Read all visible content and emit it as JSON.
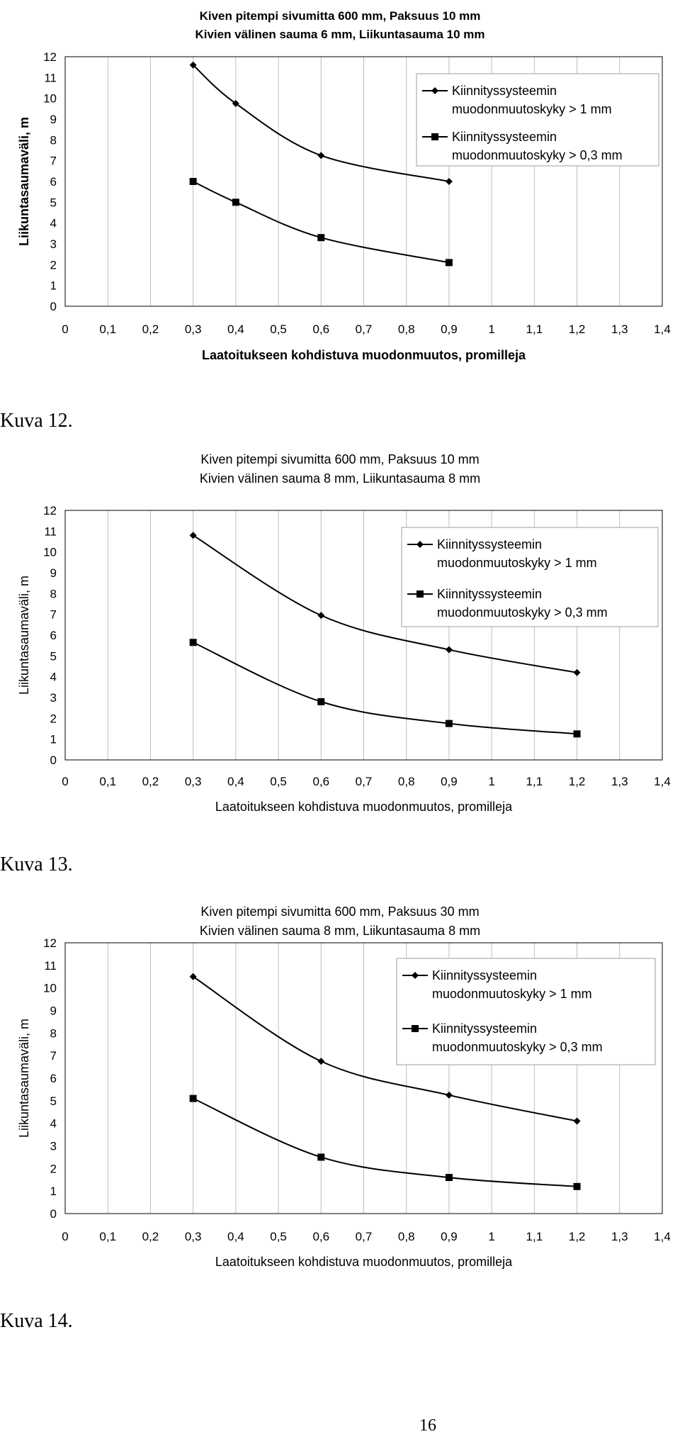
{
  "chart_data": [
    {
      "type": "line",
      "title": [
        "Kiven pitempi sivumitta 600 mm, Paksuus 10 mm",
        "Kivien välinen sauma 6 mm, Liikuntasauma 10 mm"
      ],
      "xlabel": "Laatoitukseen kohdistuva muodonmuutos, promilleja",
      "ylabel": "Liikuntasaumaväli, m",
      "xlim": [
        0,
        1.4
      ],
      "ylim": [
        0,
        12
      ],
      "xticks": [
        "0",
        "0,1",
        "0,2",
        "0,3",
        "0,4",
        "0,5",
        "0,6",
        "0,7",
        "0,8",
        "0,9",
        "1",
        "1,1",
        "1,2",
        "1,3",
        "1,4"
      ],
      "yticks": [
        "0",
        "1",
        "2",
        "3",
        "4",
        "5",
        "6",
        "7",
        "8",
        "9",
        "10",
        "11",
        "12"
      ],
      "grid": "vertical",
      "legend_position": "top-right",
      "series": [
        {
          "name": [
            "Kiinnityssysteemin",
            "muodonmuutoskyky > 1 mm"
          ],
          "marker": "diamond",
          "x": [
            0.3,
            0.4,
            0.6,
            0.9
          ],
          "y": [
            11.6,
            9.75,
            7.25,
            6.0
          ]
        },
        {
          "name": [
            "Kiinnityssysteemin",
            "muodonmuutoskyky > 0,3 mm"
          ],
          "marker": "square",
          "x": [
            0.3,
            0.4,
            0.6,
            0.9
          ],
          "y": [
            6.0,
            5.0,
            3.3,
            2.1
          ]
        }
      ]
    },
    {
      "type": "line",
      "title": [
        "Kiven pitempi sivumitta 600 mm, Paksuus 10 mm",
        "Kivien välinen sauma 8 mm, Liikuntasauma 8 mm"
      ],
      "xlabel": "Laatoitukseen kohdistuva muodonmuutos, promilleja",
      "ylabel": "Liikuntasaumaväli, m",
      "xlim": [
        0,
        1.4
      ],
      "ylim": [
        0,
        12
      ],
      "xticks": [
        "0",
        "0,1",
        "0,2",
        "0,3",
        "0,4",
        "0,5",
        "0,6",
        "0,7",
        "0,8",
        "0,9",
        "1",
        "1,1",
        "1,2",
        "1,3",
        "1,4"
      ],
      "yticks": [
        "0",
        "1",
        "2",
        "3",
        "4",
        "5",
        "6",
        "7",
        "8",
        "9",
        "10",
        "11",
        "12"
      ],
      "grid": "vertical",
      "legend_position": "top-right",
      "series": [
        {
          "name": [
            "Kiinnityssysteemin",
            "muodonmuutoskyky > 1 mm"
          ],
          "marker": "diamond",
          "x": [
            0.3,
            0.6,
            0.9,
            1.2
          ],
          "y": [
            10.8,
            6.95,
            5.3,
            4.2
          ]
        },
        {
          "name": [
            "Kiinnityssysteemin",
            "muodonmuutoskyky > 0,3 mm"
          ],
          "marker": "square",
          "x": [
            0.3,
            0.6,
            0.9,
            1.2
          ],
          "y": [
            5.65,
            2.8,
            1.75,
            1.25
          ]
        }
      ]
    },
    {
      "type": "line",
      "title": [
        "Kiven pitempi sivumitta 600 mm, Paksuus 30 mm",
        "Kivien välinen sauma 8 mm, Liikuntasauma 8 mm"
      ],
      "xlabel": "Laatoitukseen kohdistuva muodonmuutos, promilleja",
      "ylabel": "Liikuntasaumaväli, m",
      "xlim": [
        0,
        1.4
      ],
      "ylim": [
        0,
        12
      ],
      "xticks": [
        "0",
        "0,1",
        "0,2",
        "0,3",
        "0,4",
        "0,5",
        "0,6",
        "0,7",
        "0,8",
        "0,9",
        "1",
        "1,1",
        "1,2",
        "1,3",
        "1,4"
      ],
      "yticks": [
        "0",
        "1",
        "2",
        "3",
        "4",
        "5",
        "6",
        "7",
        "8",
        "9",
        "10",
        "11",
        "12"
      ],
      "grid": "vertical",
      "legend_position": "top-right",
      "series": [
        {
          "name": [
            "Kiinnityssysteemin",
            "muodonmuutoskyky > 1 mm"
          ],
          "marker": "diamond",
          "x": [
            0.3,
            0.6,
            0.9,
            1.2
          ],
          "y": [
            10.5,
            6.75,
            5.25,
            4.1
          ]
        },
        {
          "name": [
            "Kiinnityssysteemin",
            "muodonmuutoskyky > 0,3 mm"
          ],
          "marker": "square",
          "x": [
            0.3,
            0.6,
            0.9,
            1.2
          ],
          "y": [
            5.1,
            2.5,
            1.6,
            1.2
          ]
        }
      ]
    }
  ],
  "captions": [
    "Kuva 12.",
    "Kuva 13.",
    "Kuva 14."
  ],
  "page_number": "16"
}
